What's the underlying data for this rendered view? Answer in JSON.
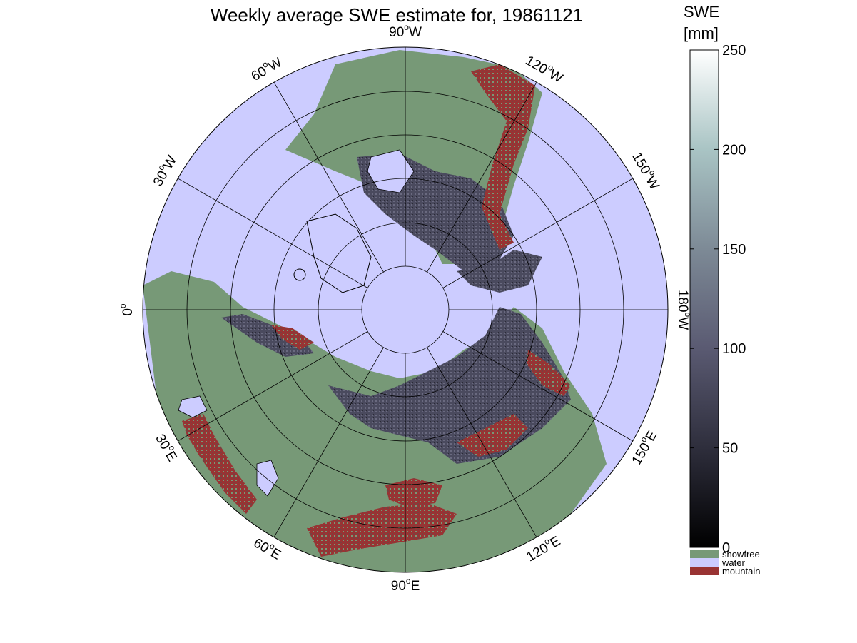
{
  "title": "Weekly average SWE estimate for, 19861121",
  "colors": {
    "water": "#ccccff",
    "snowfree": "#779977",
    "mountain": "#993333",
    "snow_dark": "#3a3a4c",
    "snow_mid": "#555566",
    "snow_light": "#6a6a80",
    "grid": "#000000"
  },
  "longitude_labels": [
    {
      "text": "90",
      "hemi": "W",
      "lon": 90
    },
    {
      "text": "120",
      "hemi": "W",
      "lon": 120
    },
    {
      "text": "150",
      "hemi": "W",
      "lon": 150
    },
    {
      "text": "180",
      "hemi": "W",
      "lon": 180
    },
    {
      "text": "150",
      "hemi": "E",
      "lon": 210
    },
    {
      "text": "120",
      "hemi": "E",
      "lon": 240
    },
    {
      "text": "90",
      "hemi": "E",
      "lon": 270
    },
    {
      "text": "60",
      "hemi": "E",
      "lon": 300
    },
    {
      "text": "30",
      "hemi": "E",
      "lon": 330
    },
    {
      "text": "0",
      "hemi": "",
      "lon": 0
    },
    {
      "text": "30",
      "hemi": "W",
      "lon": 30
    },
    {
      "text": "60",
      "hemi": "W",
      "lon": 60
    }
  ],
  "colorbar": {
    "title_line1": "SWE",
    "title_line2": "[mm]",
    "ticks": [
      "0",
      "50",
      "100",
      "150",
      "200",
      "250"
    ],
    "tick_values": [
      0,
      50,
      100,
      150,
      200,
      250
    ],
    "range": [
      0,
      250
    ],
    "gradient_stops": [
      "#000000",
      "#2e2e3c",
      "#5a5a72",
      "#7d8a96",
      "#a9c4c4",
      "#ffffff"
    ]
  },
  "legend": [
    {
      "label": "snowfree",
      "color": "#779977"
    },
    {
      "label": "water",
      "color": "#ccccff"
    },
    {
      "label": "mountain",
      "color": "#993333"
    }
  ]
}
